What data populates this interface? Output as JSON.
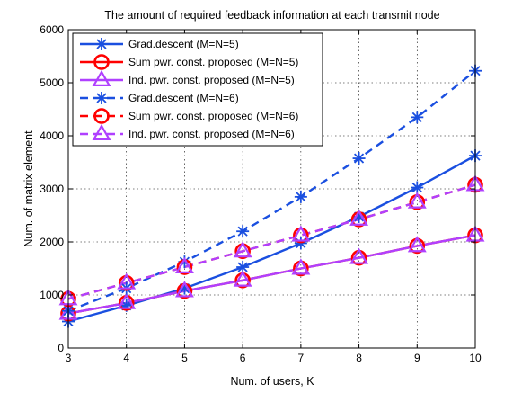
{
  "chart_data": {
    "type": "line",
    "title": "The amount of required feedback information at each transmit node",
    "xlabel": "Num. of users, K",
    "ylabel": "Num. of matrix element",
    "x": [
      3,
      4,
      5,
      6,
      7,
      8,
      9,
      10
    ],
    "xlim": [
      3,
      10
    ],
    "ylim": [
      0,
      6000
    ],
    "xticks": [
      3,
      4,
      5,
      6,
      7,
      8,
      9,
      10
    ],
    "yticks": [
      0,
      1000,
      2000,
      3000,
      4000,
      5000,
      6000
    ],
    "grid": true,
    "legend_position": "top-left",
    "series": [
      {
        "name": "Grad.descent (M=N=5)",
        "color": "#1a4fe0",
        "dash": "solid",
        "marker": "asterisk",
        "values": [
          500,
          800,
          1125,
          1525,
          1975,
          2475,
          3025,
          3625
        ]
      },
      {
        "name": "Sum pwr. const. proposed (M=N=5)",
        "color": "#ff0000",
        "dash": "solid",
        "marker": "circle",
        "values": [
          650,
          850,
          1075,
          1275,
          1500,
          1700,
          1925,
          2125
        ]
      },
      {
        "name": "Ind. pwr. const. proposed (M=N=5)",
        "color": "#b040ff",
        "dash": "solid",
        "marker": "triangle",
        "values": [
          650,
          850,
          1075,
          1275,
          1500,
          1700,
          1925,
          2125
        ]
      },
      {
        "name": "Grad.descent (M=N=6)",
        "color": "#1a4fe0",
        "dash": "dashed",
        "marker": "asterisk",
        "values": [
          700,
          1125,
          1625,
          2200,
          2850,
          3575,
          4350,
          5225
        ]
      },
      {
        "name": "Sum pwr. const. proposed (M=N=6)",
        "color": "#ff0000",
        "dash": "dashed",
        "marker": "circle",
        "values": [
          925,
          1225,
          1525,
          1825,
          2125,
          2425,
          2750,
          3075
        ]
      },
      {
        "name": "Ind. pwr. const. proposed (M=N=6)",
        "color": "#b040ff",
        "dash": "dashed",
        "marker": "triangle",
        "values": [
          925,
          1225,
          1525,
          1825,
          2125,
          2425,
          2750,
          3075
        ]
      }
    ]
  }
}
